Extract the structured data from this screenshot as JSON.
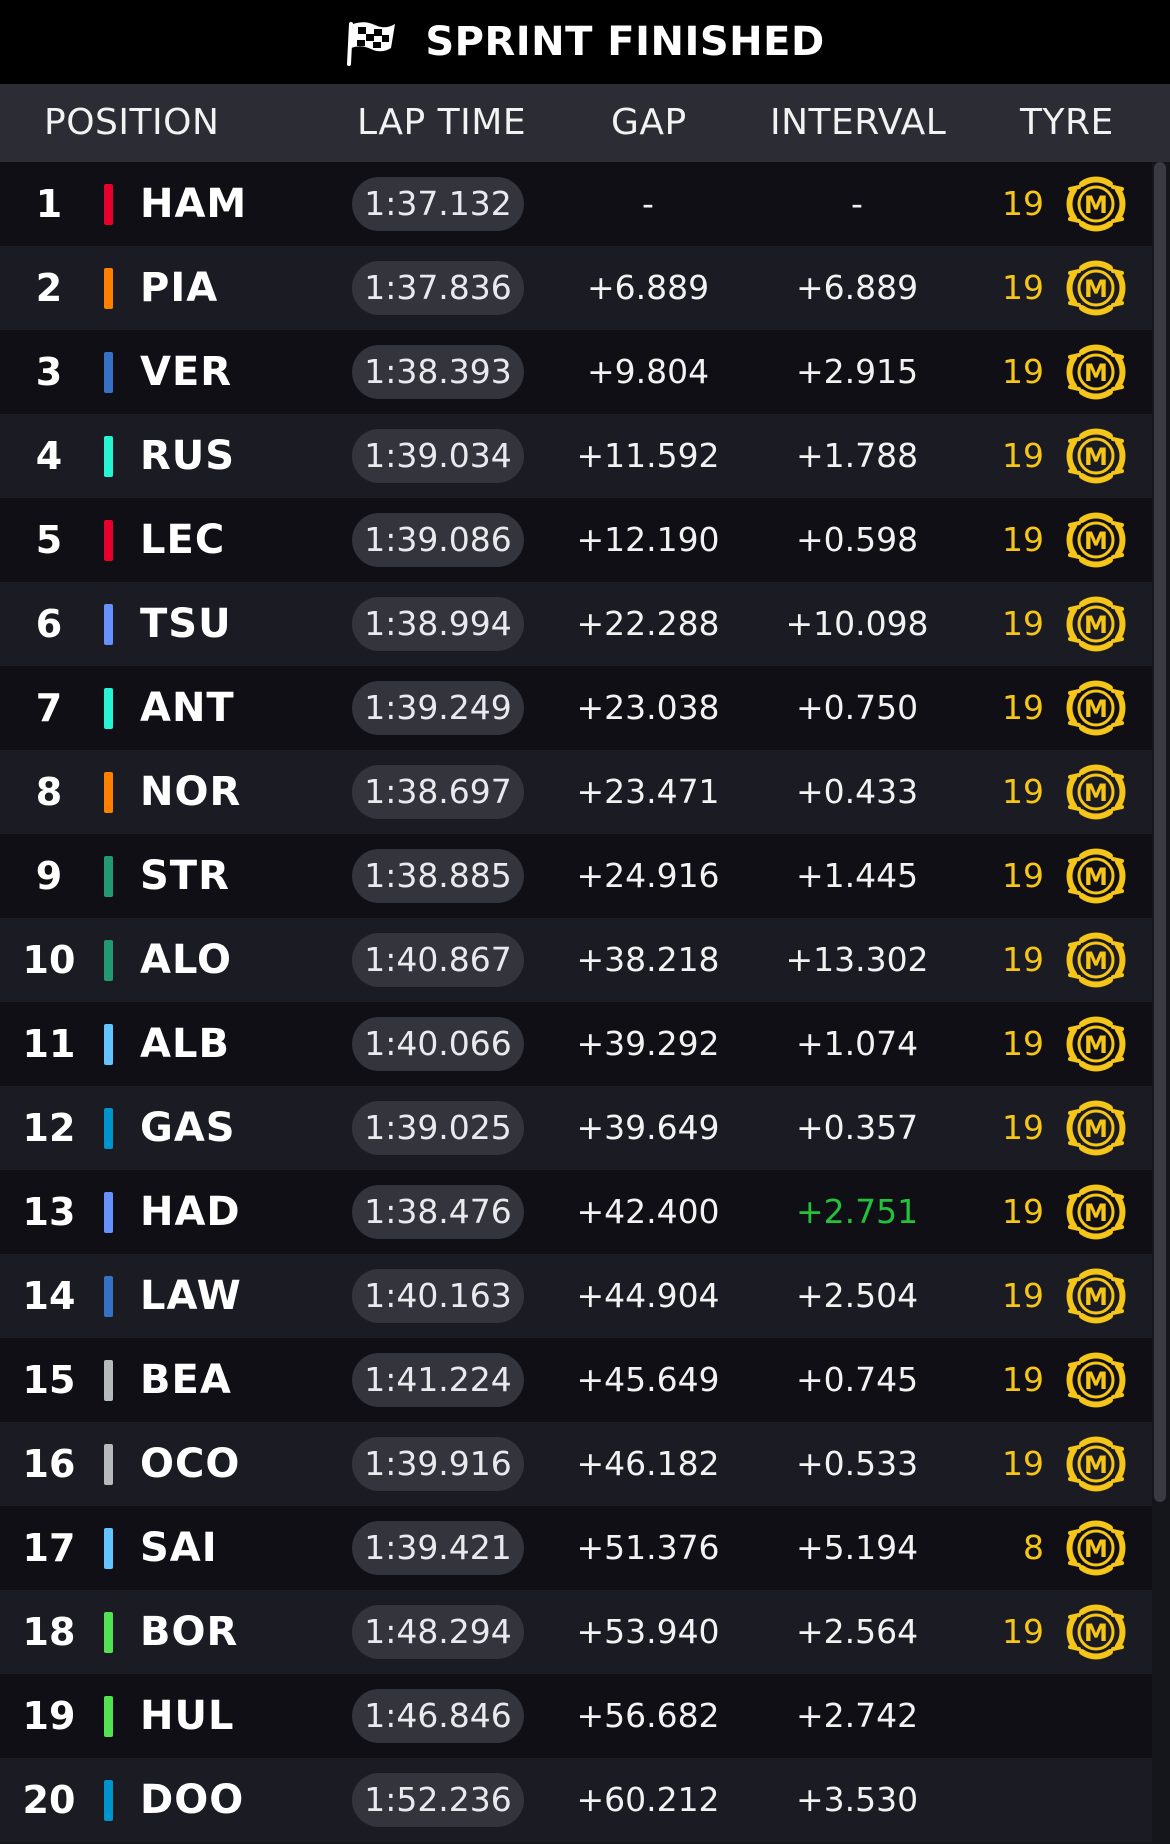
{
  "title": "SPRINT FINISHED",
  "headers": {
    "position": "POSITION",
    "lap_time": "LAP TIME",
    "gap": "GAP",
    "interval": "INTERVAL",
    "tyre": "TYRE"
  },
  "colors": {
    "tyre_medium": "#f5c518",
    "interval_highlight": "#22c33a"
  },
  "rows": [
    {
      "pos": "1",
      "driver": "HAM",
      "team_color": "#e8002d",
      "lap": "1:37.132",
      "gap": "-",
      "interval": "-",
      "tyre_laps": "19",
      "tyre": "M"
    },
    {
      "pos": "2",
      "driver": "PIA",
      "team_color": "#ff8000",
      "lap": "1:37.836",
      "gap": "+6.889",
      "interval": "+6.889",
      "tyre_laps": "19",
      "tyre": "M"
    },
    {
      "pos": "3",
      "driver": "VER",
      "team_color": "#3671c6",
      "lap": "1:38.393",
      "gap": "+9.804",
      "interval": "+2.915",
      "tyre_laps": "19",
      "tyre": "M"
    },
    {
      "pos": "4",
      "driver": "RUS",
      "team_color": "#27f4d2",
      "lap": "1:39.034",
      "gap": "+11.592",
      "interval": "+1.788",
      "tyre_laps": "19",
      "tyre": "M"
    },
    {
      "pos": "5",
      "driver": "LEC",
      "team_color": "#e8002d",
      "lap": "1:39.086",
      "gap": "+12.190",
      "interval": "+0.598",
      "tyre_laps": "19",
      "tyre": "M"
    },
    {
      "pos": "6",
      "driver": "TSU",
      "team_color": "#6692ff",
      "lap": "1:38.994",
      "gap": "+22.288",
      "interval": "+10.098",
      "tyre_laps": "19",
      "tyre": "M"
    },
    {
      "pos": "7",
      "driver": "ANT",
      "team_color": "#27f4d2",
      "lap": "1:39.249",
      "gap": "+23.038",
      "interval": "+0.750",
      "tyre_laps": "19",
      "tyre": "M"
    },
    {
      "pos": "8",
      "driver": "NOR",
      "team_color": "#ff8000",
      "lap": "1:38.697",
      "gap": "+23.471",
      "interval": "+0.433",
      "tyre_laps": "19",
      "tyre": "M"
    },
    {
      "pos": "9",
      "driver": "STR",
      "team_color": "#229971",
      "lap": "1:38.885",
      "gap": "+24.916",
      "interval": "+1.445",
      "tyre_laps": "19",
      "tyre": "M"
    },
    {
      "pos": "10",
      "driver": "ALO",
      "team_color": "#229971",
      "lap": "1:40.867",
      "gap": "+38.218",
      "interval": "+13.302",
      "tyre_laps": "19",
      "tyre": "M"
    },
    {
      "pos": "11",
      "driver": "ALB",
      "team_color": "#64c4ff",
      "lap": "1:40.066",
      "gap": "+39.292",
      "interval": "+1.074",
      "tyre_laps": "19",
      "tyre": "M"
    },
    {
      "pos": "12",
      "driver": "GAS",
      "team_color": "#0093cc",
      "lap": "1:39.025",
      "gap": "+39.649",
      "interval": "+0.357",
      "tyre_laps": "19",
      "tyre": "M"
    },
    {
      "pos": "13",
      "driver": "HAD",
      "team_color": "#6692ff",
      "lap": "1:38.476",
      "gap": "+42.400",
      "interval": "+2.751",
      "tyre_laps": "19",
      "tyre": "M",
      "interval_color": "#22c33a"
    },
    {
      "pos": "14",
      "driver": "LAW",
      "team_color": "#3671c6",
      "lap": "1:40.163",
      "gap": "+44.904",
      "interval": "+2.504",
      "tyre_laps": "19",
      "tyre": "M"
    },
    {
      "pos": "15",
      "driver": "BEA",
      "team_color": "#b6babd",
      "lap": "1:41.224",
      "gap": "+45.649",
      "interval": "+0.745",
      "tyre_laps": "19",
      "tyre": "M"
    },
    {
      "pos": "16",
      "driver": "OCO",
      "team_color": "#b6babd",
      "lap": "1:39.916",
      "gap": "+46.182",
      "interval": "+0.533",
      "tyre_laps": "19",
      "tyre": "M"
    },
    {
      "pos": "17",
      "driver": "SAI",
      "team_color": "#64c4ff",
      "lap": "1:39.421",
      "gap": "+51.376",
      "interval": "+5.194",
      "tyre_laps": "8",
      "tyre": "M"
    },
    {
      "pos": "18",
      "driver": "BOR",
      "team_color": "#52e252",
      "lap": "1:48.294",
      "gap": "+53.940",
      "interval": "+2.564",
      "tyre_laps": "19",
      "tyre": "M"
    },
    {
      "pos": "19",
      "driver": "HUL",
      "team_color": "#52e252",
      "lap": "1:46.846",
      "gap": "+56.682",
      "interval": "+2.742",
      "tyre_laps": "",
      "tyre": ""
    },
    {
      "pos": "20",
      "driver": "DOO",
      "team_color": "#0093cc",
      "lap": "1:52.236",
      "gap": "+60.212",
      "interval": "+3.530",
      "tyre_laps": "",
      "tyre": ""
    }
  ]
}
